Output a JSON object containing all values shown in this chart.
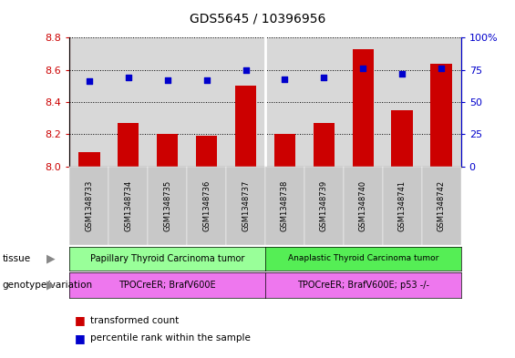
{
  "title": "GDS5645 / 10396956",
  "samples": [
    "GSM1348733",
    "GSM1348734",
    "GSM1348735",
    "GSM1348736",
    "GSM1348737",
    "GSM1348738",
    "GSM1348739",
    "GSM1348740",
    "GSM1348741",
    "GSM1348742"
  ],
  "bar_values": [
    8.09,
    8.27,
    8.2,
    8.19,
    8.5,
    8.2,
    8.27,
    8.73,
    8.35,
    8.64
  ],
  "dot_values": [
    66,
    69,
    67,
    67,
    75,
    68,
    69,
    76,
    72,
    76
  ],
  "ylim_left": [
    8.0,
    8.8
  ],
  "ylim_right": [
    0,
    100
  ],
  "yticks_left": [
    8.0,
    8.2,
    8.4,
    8.6,
    8.8
  ],
  "yticks_right": [
    0,
    25,
    50,
    75,
    100
  ],
  "bar_color": "#cc0000",
  "dot_color": "#0000cc",
  "tissue_labels": [
    "Papillary Thyroid Carcinoma tumor",
    "Anaplastic Thyroid Carcinoma tumor"
  ],
  "tissue_color_1": "#99ff99",
  "tissue_color_2": "#55ee55",
  "genotype_labels": [
    "TPOCreER; BrafV600E",
    "TPOCreER; BrafV600E; p53 -/-"
  ],
  "genotype_color": "#ee77ee",
  "tissue_split": 5,
  "legend_bar_label": "transformed count",
  "legend_dot_label": "percentile rank within the sample",
  "tissue_row_label": "tissue",
  "genotype_row_label": "genotype/variation",
  "plot_bg_color": "#d8d8d8",
  "xtick_bg_color": "#c8c8c8",
  "ylabel_left_color": "#cc0000",
  "ylabel_right_color": "#0000cc",
  "title_color": "#000000",
  "separator_color": "#ffffff"
}
